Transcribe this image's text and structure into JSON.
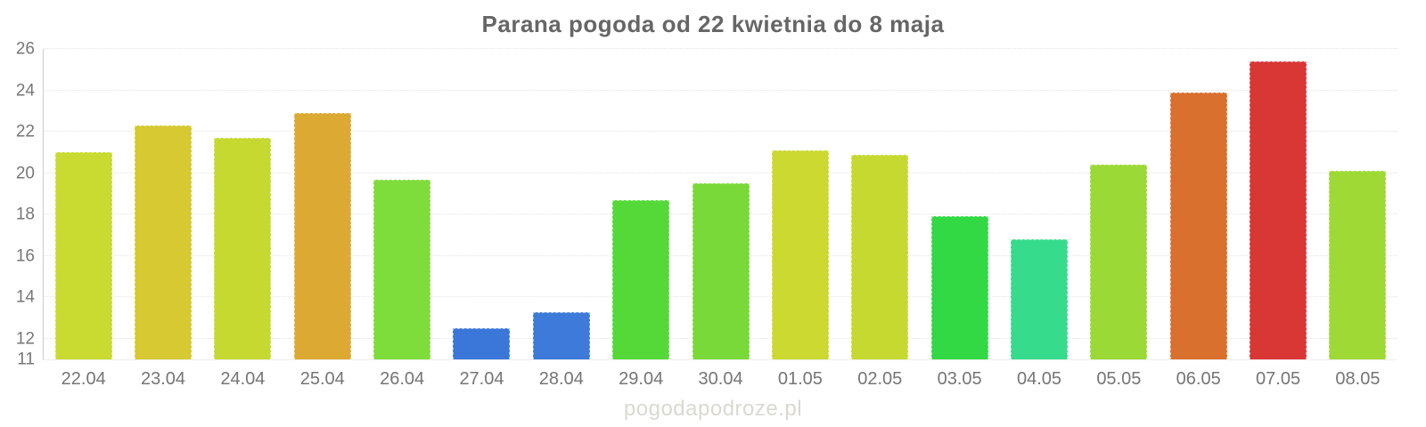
{
  "chart_data": {
    "type": "bar",
    "title": "Parana pogoda od 22 kwietnia do 8 maja",
    "categories": [
      "22.04",
      "23.04",
      "24.04",
      "25.04",
      "26.04",
      "27.04",
      "28.04",
      "29.04",
      "30.04",
      "01.05",
      "02.05",
      "03.05",
      "04.05",
      "05.05",
      "06.05",
      "07.05",
      "08.05"
    ],
    "values": [
      21.0,
      22.3,
      21.7,
      22.9,
      19.7,
      12.5,
      13.3,
      18.7,
      19.5,
      21.1,
      20.9,
      17.9,
      16.8,
      20.4,
      23.9,
      25.4,
      20.1
    ],
    "bar_colors": [
      "#c9da31",
      "#d6c931",
      "#c6d930",
      "#dcaa33",
      "#7edc3b",
      "#3a77d9",
      "#3d7ad9",
      "#54d938",
      "#79d938",
      "#cbd931",
      "#c6d931",
      "#33d845",
      "#37db8c",
      "#9bd936",
      "#d9702e",
      "#d93636",
      "#9ed936"
    ],
    "xlabel": "",
    "ylabel": "",
    "ylim": [
      11,
      26
    ],
    "yticks": [
      26,
      24,
      22,
      20,
      18,
      16,
      14,
      12,
      11
    ],
    "grid": true,
    "legend": false
  },
  "watermark": "pogodapodroze.pl",
  "colors": {
    "title": "#666666",
    "tick_label": "#777777",
    "gridline": "#e4e4df",
    "axis_line": "#cccccc",
    "watermark": "#d9d9d1"
  }
}
